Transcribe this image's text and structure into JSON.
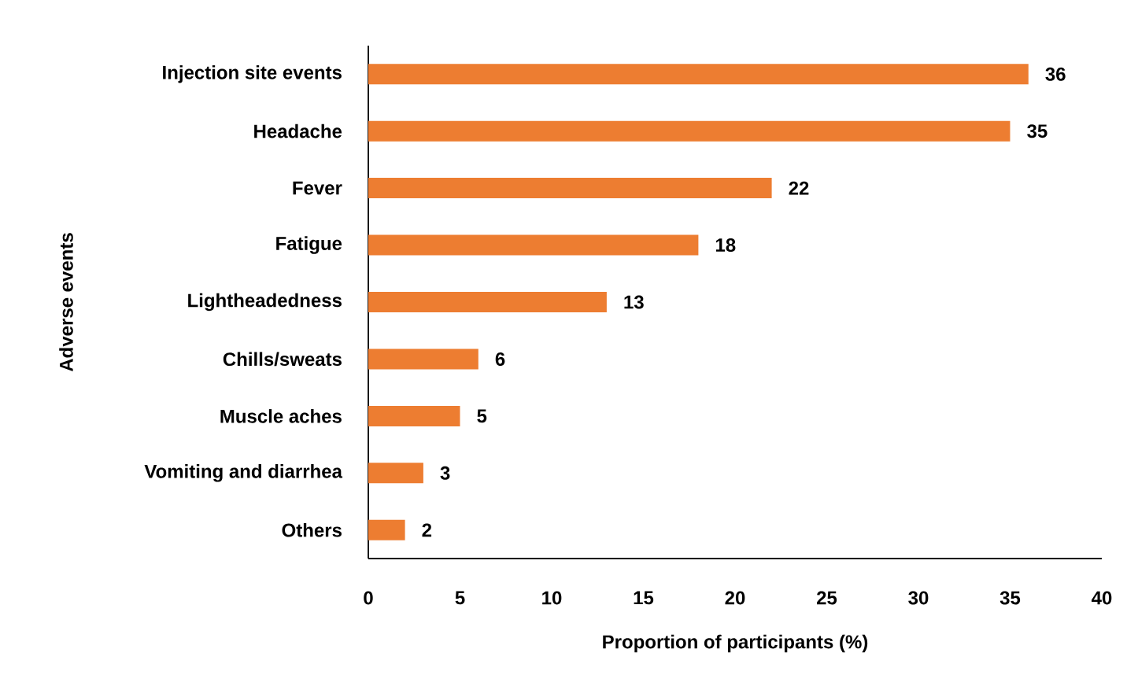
{
  "chart_data": {
    "type": "bar",
    "orientation": "horizontal",
    "categories": [
      "Injection site events",
      "Headache",
      "Fever",
      "Fatigue",
      "Lightheadedness",
      "Chills/sweats",
      "Muscle aches",
      "Vomiting and diarrhea",
      "Others"
    ],
    "values": [
      36,
      35,
      22,
      18,
      13,
      6,
      5,
      3,
      2
    ],
    "color": "#ed7d31",
    "xlabel": "Proportion of participants (%)",
    "ylabel": "Adverse events",
    "xlim": [
      0,
      40
    ],
    "xticks": [
      0,
      5,
      10,
      15,
      20,
      25,
      30,
      35,
      40
    ],
    "data_labels": true
  }
}
